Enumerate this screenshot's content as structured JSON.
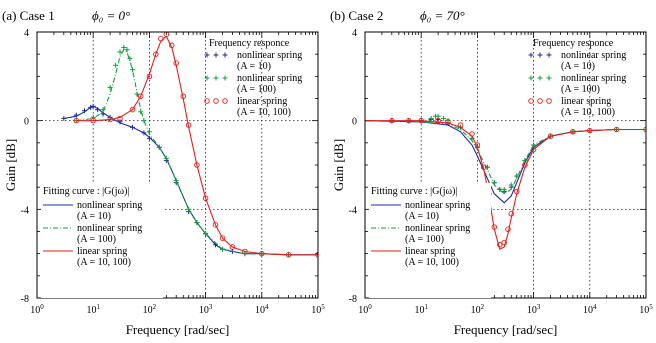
{
  "figure": {
    "panel_titles": [
      "(a) Case 1",
      "(b) Case 2"
    ],
    "phi_labels": [
      "ϕ₀ = 0°",
      "ϕ₀ = 70°"
    ]
  },
  "colors": {
    "nl10": "#1f2a9c",
    "nl100": "#12a03a",
    "lin": "#e0201e",
    "axis": "#000000",
    "grid": "#000000"
  },
  "chart_data": [
    {
      "type": "line",
      "title": "(a) Case 1",
      "subtitle": "ϕ₀ = 0°",
      "xlabel": "Frequency [rad/sec]",
      "ylabel": "Gain [dB]",
      "xscale": "log",
      "xlim": [
        1,
        100000
      ],
      "ylim": [
        -8,
        4
      ],
      "x_ticks": [
        1,
        10,
        100,
        1000,
        10000,
        100000
      ],
      "y_ticks": [
        -8,
        -4,
        0,
        4
      ],
      "grid": "dotted",
      "legends": {
        "measured_title": "Frequency responce",
        "measured_entries": [
          {
            "key": "nl10",
            "marker": "+",
            "label": "nonlinear spring",
            "sublabel": "(A = 10)"
          },
          {
            "key": "nl100",
            "marker": "+",
            "label": "nonlinear spring",
            "sublabel": "(A = 100)"
          },
          {
            "key": "lin",
            "marker": "o",
            "label": "linear spring",
            "sublabel": "(A = 10, 100)"
          }
        ],
        "fit_title": "Fitting curve : |G(jω)|",
        "fit_entries": [
          {
            "key": "nl10",
            "dash": "solid",
            "label": "nonlinear spring",
            "sublabel": "(A = 10)"
          },
          {
            "key": "nl100",
            "dash": "dashdot",
            "label": "nonlinear spring",
            "sublabel": "(A = 100)"
          },
          {
            "key": "lin",
            "dash": "solid",
            "label": "linear spring",
            "sublabel": "(A = 10, 100)"
          }
        ]
      },
      "series": [
        {
          "key": "nl10",
          "kind": "fit",
          "x": [
            3,
            5,
            7,
            9,
            10,
            12,
            15,
            20,
            30,
            50,
            80,
            100,
            150,
            200,
            300,
            500,
            700,
            1000,
            1500,
            2000,
            3000,
            5000,
            10000,
            30000,
            100000
          ],
          "y": [
            0.1,
            0.2,
            0.4,
            0.6,
            0.65,
            0.55,
            0.35,
            0.15,
            -0.1,
            -0.3,
            -0.55,
            -0.75,
            -1.2,
            -1.7,
            -2.7,
            -4.0,
            -4.6,
            -5.1,
            -5.6,
            -5.8,
            -5.9,
            -6.0,
            -6.0,
            -6.05,
            -6.05
          ]
        },
        {
          "key": "nl10",
          "kind": "data",
          "x": [
            3,
            5,
            7,
            9,
            10,
            12,
            15,
            20,
            30,
            50,
            80,
            100,
            150,
            200,
            300,
            500,
            700,
            1000,
            1500,
            2000,
            3000,
            5000,
            10000,
            30000,
            100000
          ],
          "y": [
            0.1,
            0.25,
            0.45,
            0.6,
            0.65,
            0.5,
            0.3,
            0.15,
            -0.05,
            -0.3,
            -0.55,
            -0.8,
            -1.2,
            -1.8,
            -2.8,
            -4.1,
            -4.6,
            -5.1,
            -5.6,
            -5.8,
            -5.9,
            -6.0,
            -6.0,
            -6.05,
            -6.05
          ]
        },
        {
          "key": "nl100",
          "kind": "fit",
          "x": [
            5,
            10,
            15,
            20,
            25,
            30,
            35,
            40,
            50,
            60,
            70,
            80,
            100,
            150,
            200,
            300,
            500,
            700,
            1000,
            2000,
            5000,
            10000,
            30000,
            100000
          ],
          "y": [
            0.0,
            0.1,
            0.4,
            1.2,
            2.1,
            2.9,
            3.2,
            3.1,
            2.3,
            1.3,
            0.5,
            0.0,
            -0.6,
            -1.2,
            -1.7,
            -2.7,
            -4.0,
            -4.6,
            -5.1,
            -5.8,
            -6.0,
            -6.0,
            -6.05,
            -6.05
          ]
        },
        {
          "key": "nl100",
          "kind": "data",
          "x": [
            5,
            10,
            15,
            20,
            25,
            30,
            35,
            40,
            45,
            50,
            60,
            70,
            80,
            100,
            150,
            200,
            300,
            500,
            700,
            1000,
            2000,
            5000,
            10000,
            30000,
            100000
          ],
          "y": [
            0.0,
            0.15,
            0.5,
            1.5,
            2.5,
            3.1,
            3.3,
            3.2,
            2.8,
            2.3,
            1.2,
            0.4,
            0.0,
            -0.5,
            -1.2,
            -1.7,
            -2.7,
            -4.0,
            -4.6,
            -5.1,
            -5.8,
            -6.0,
            -6.0,
            -6.05,
            -6.05
          ]
        },
        {
          "key": "lin",
          "kind": "fit",
          "x": [
            5,
            10,
            20,
            30,
            50,
            70,
            100,
            130,
            160,
            200,
            250,
            300,
            400,
            500,
            700,
            1000,
            1500,
            2000,
            3000,
            5000,
            10000,
            30000,
            100000
          ],
          "y": [
            0.0,
            0.0,
            0.05,
            0.15,
            0.5,
            1.1,
            2.1,
            3.0,
            3.6,
            3.8,
            3.3,
            2.5,
            1.0,
            -0.3,
            -2.0,
            -3.5,
            -4.7,
            -5.3,
            -5.7,
            -5.9,
            -6.0,
            -6.05,
            -6.05
          ]
        },
        {
          "key": "lin",
          "kind": "data",
          "x": [
            5,
            10,
            20,
            30,
            50,
            70,
            100,
            130,
            160,
            200,
            250,
            300,
            400,
            500,
            700,
            1000,
            1500,
            2000,
            3000,
            5000,
            10000,
            30000,
            100000
          ],
          "y": [
            0.0,
            0.0,
            0.05,
            0.1,
            0.5,
            1.1,
            2.0,
            3.0,
            3.7,
            3.9,
            3.4,
            2.6,
            1.1,
            -0.2,
            -2.0,
            -3.5,
            -4.7,
            -5.3,
            -5.7,
            -5.9,
            -6.0,
            -6.05,
            -6.05
          ]
        }
      ]
    },
    {
      "type": "line",
      "title": "(b) Case 2",
      "subtitle": "ϕ₀ = 70°",
      "xlabel": "Frequency [rad/sec]",
      "ylabel": "Gain [dB]",
      "xscale": "log",
      "xlim": [
        1,
        100000
      ],
      "ylim": [
        -8,
        4
      ],
      "x_ticks": [
        1,
        10,
        100,
        1000,
        10000,
        100000
      ],
      "y_ticks": [
        -8,
        -4,
        0,
        4
      ],
      "grid": "dotted",
      "legends": {
        "measured_title": "Frequency responce",
        "measured_entries": [
          {
            "key": "nl10",
            "marker": "+",
            "label": "nonlinear spring",
            "sublabel": "(A = 10)"
          },
          {
            "key": "nl100",
            "marker": "+",
            "label": "nonlinear spring",
            "sublabel": "(A = 100)"
          },
          {
            "key": "lin",
            "marker": "o",
            "label": "linear spring",
            "sublabel": "(A = 10, 100)"
          }
        ],
        "fit_title": "Fitting curve : |G(jω)|",
        "fit_entries": [
          {
            "key": "nl10",
            "dash": "solid",
            "label": "nonlinear spring",
            "sublabel": "(A = 10)"
          },
          {
            "key": "nl100",
            "dash": "dashdot",
            "label": "nonlinear spring",
            "sublabel": "(A = 100)"
          },
          {
            "key": "lin",
            "dash": "solid",
            "label": "linear spring",
            "sublabel": "(A = 10, 100)"
          }
        ]
      },
      "series": [
        {
          "key": "nl10",
          "kind": "fit",
          "x": [
            1,
            10,
            30,
            50,
            80,
            100,
            150,
            200,
            300,
            400,
            500,
            700,
            1000,
            2000,
            5000,
            10000,
            30000,
            100000
          ],
          "y": [
            0.0,
            -0.05,
            -0.2,
            -0.5,
            -1.1,
            -1.6,
            -2.6,
            -3.3,
            -3.7,
            -3.4,
            -2.8,
            -1.9,
            -1.2,
            -0.7,
            -0.5,
            -0.45,
            -0.4,
            -0.4
          ]
        },
        {
          "key": "nl10",
          "kind": "data",
          "x": [
            3,
            6,
            10,
            15,
            20,
            30,
            50,
            80,
            100,
            150,
            200,
            250,
            300,
            400,
            500,
            700,
            1000,
            2000,
            5000,
            10000,
            30000,
            100000
          ],
          "y": [
            0.0,
            0.0,
            0.0,
            0.05,
            0.05,
            -0.1,
            -0.3,
            -0.8,
            -1.2,
            -2.1,
            -2.8,
            -3.1,
            -3.2,
            -3.0,
            -2.5,
            -1.8,
            -1.1,
            -0.7,
            -0.5,
            -0.45,
            -0.4,
            -0.4
          ]
        },
        {
          "key": "nl100",
          "kind": "fit",
          "x": [
            1,
            10,
            30,
            50,
            80,
            100,
            150,
            200,
            300,
            400,
            500,
            700,
            1000,
            2000,
            5000,
            10000,
            30000,
            100000
          ],
          "y": [
            0.0,
            -0.05,
            -0.15,
            -0.4,
            -0.9,
            -1.3,
            -2.2,
            -2.9,
            -3.3,
            -3.1,
            -2.6,
            -1.8,
            -1.1,
            -0.7,
            -0.5,
            -0.45,
            -0.4,
            -0.4
          ]
        },
        {
          "key": "nl100",
          "kind": "data",
          "x": [
            3,
            6,
            10,
            15,
            18,
            20,
            25,
            30,
            50,
            80,
            100,
            150,
            200,
            250,
            300,
            400,
            500,
            700,
            1000,
            2000,
            5000,
            10000,
            30000,
            100000
          ],
          "y": [
            0.0,
            0.0,
            0.0,
            0.1,
            0.2,
            0.2,
            0.1,
            0.0,
            -0.3,
            -0.8,
            -1.2,
            -2.1,
            -2.8,
            -3.1,
            -3.1,
            -2.9,
            -2.5,
            -1.8,
            -1.1,
            -0.7,
            -0.5,
            -0.45,
            -0.4,
            -0.4
          ]
        },
        {
          "key": "lin",
          "kind": "fit",
          "x": [
            1,
            10,
            30,
            50,
            80,
            100,
            130,
            160,
            200,
            250,
            300,
            350,
            400,
            500,
            700,
            1000,
            2000,
            5000,
            10000,
            30000,
            100000
          ],
          "y": [
            0.0,
            0.0,
            -0.1,
            -0.3,
            -0.7,
            -1.2,
            -2.2,
            -3.4,
            -4.9,
            -5.8,
            -5.7,
            -5.1,
            -4.4,
            -3.3,
            -2.1,
            -1.3,
            -0.7,
            -0.5,
            -0.45,
            -0.4,
            -0.4
          ]
        },
        {
          "key": "lin",
          "kind": "data",
          "x": [
            3,
            6,
            10,
            20,
            30,
            50,
            80,
            100,
            130,
            160,
            200,
            250,
            300,
            350,
            400,
            500,
            700,
            1000,
            2000,
            5000,
            10000,
            30000,
            100000
          ],
          "y": [
            0.0,
            0.0,
            0.0,
            0.0,
            -0.05,
            -0.2,
            -0.6,
            -1.1,
            -2.1,
            -3.3,
            -4.8,
            -5.6,
            -5.5,
            -4.9,
            -4.2,
            -3.2,
            -2.0,
            -1.3,
            -0.7,
            -0.5,
            -0.45,
            -0.4,
            -0.4
          ]
        }
      ]
    }
  ]
}
